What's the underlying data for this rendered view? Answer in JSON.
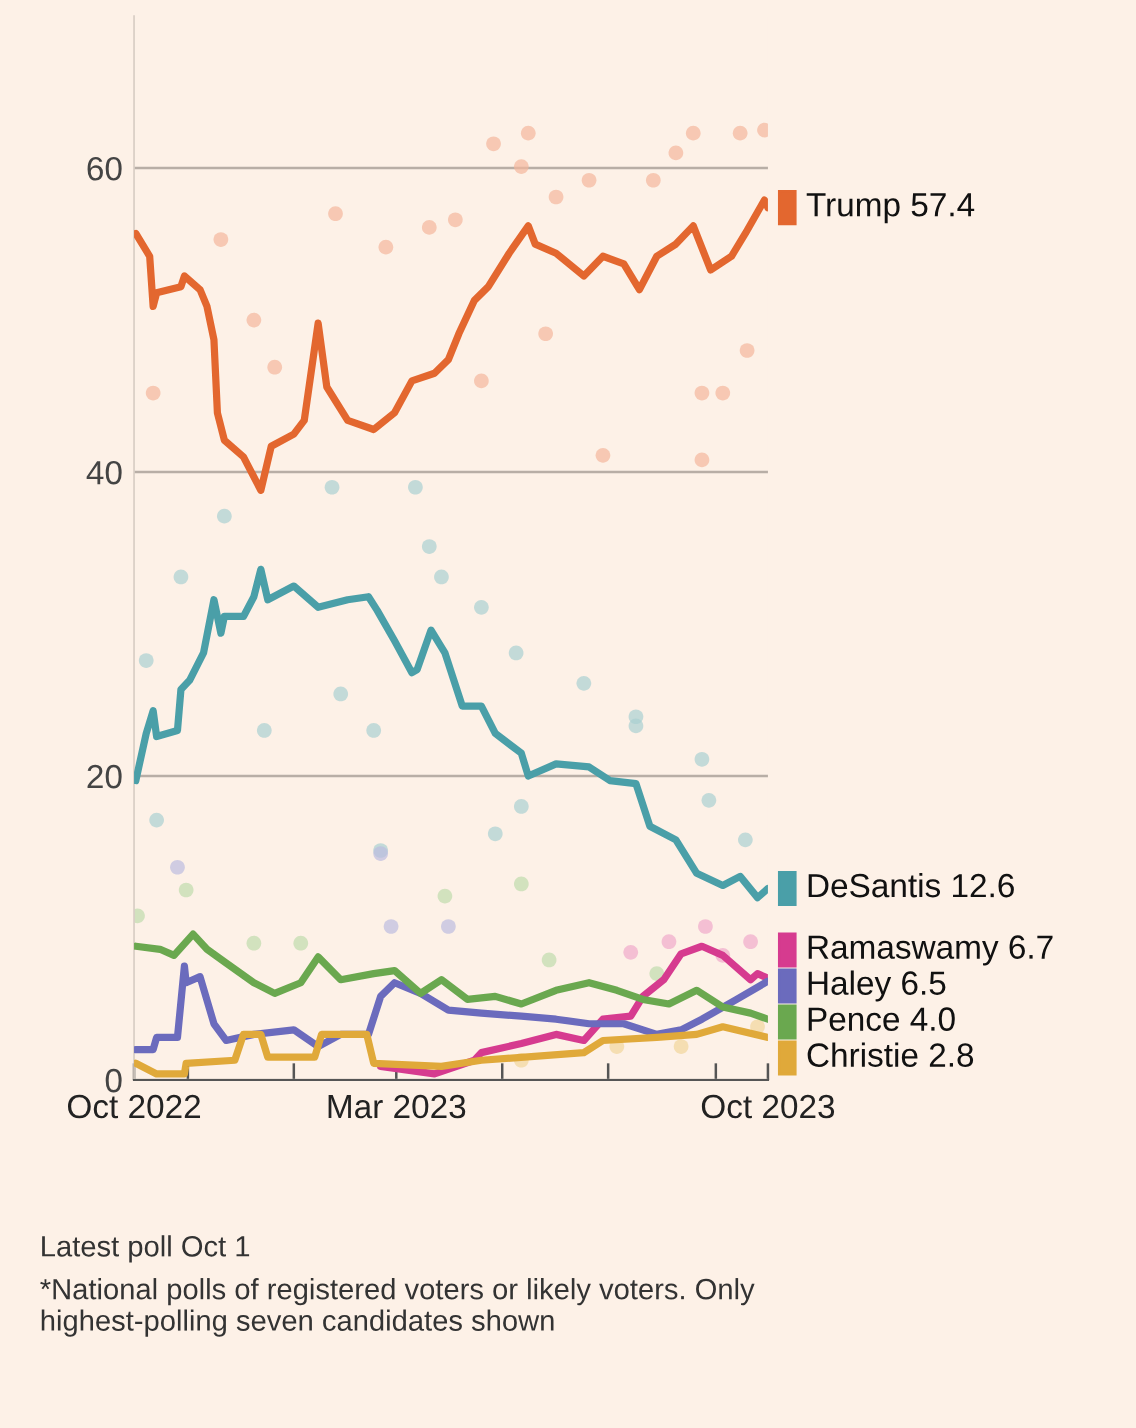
{
  "chart_data": {
    "type": "line",
    "xlim": [
      "2022-10-01",
      "2023-10-01"
    ],
    "xticks": [
      {
        "value": "2022-10-01",
        "label": "Oct 2022"
      },
      {
        "value": "2022-11-01",
        "label": null
      },
      {
        "value": "2023-01-01",
        "label": null
      },
      {
        "value": "2023-03-01",
        "label": "Mar 2023"
      },
      {
        "value": "2023-05-01",
        "label": null
      },
      {
        "value": "2023-07-01",
        "label": null
      },
      {
        "value": "2023-09-01",
        "label": null
      },
      {
        "value": "2023-10-01",
        "label": "Oct 2023"
      }
    ],
    "ylim": [
      0,
      70
    ],
    "yticks": [
      0,
      20,
      40,
      60
    ],
    "grid": "y",
    "annotations": [
      "Latest poll Oct 1",
      "*National polls of registered voters or likely voters. Only highest-polling seven candidates shown"
    ],
    "series": [
      {
        "type": "scatter",
        "color": "#f3b79c",
        "x": [
          "2023-04-26",
          "2023-05-12",
          "2023-05-16",
          "2023-06-20",
          "2023-07-27",
          "2023-08-19",
          "2023-09-29",
          "2023-09-15",
          "2022-12-09",
          "2022-12-21",
          "2023-01-25",
          "2022-10-12",
          "2022-11-20",
          "2023-02-23",
          "2023-03-20",
          "2023-04-19",
          "2023-05-26",
          "2023-06-28",
          "2023-08-24",
          "2023-08-24",
          "2023-09-05",
          "2023-09-19",
          "2023-04-04",
          "2023-06-01",
          "2023-08-09"
        ],
        "values": [
          61.6,
          60.1,
          62.3,
          59.2,
          59.2,
          62.3,
          62.5,
          62.3,
          50.0,
          46.9,
          57.0,
          45.2,
          55.3,
          54.8,
          56.1,
          46.0,
          49.1,
          41.1,
          45.2,
          40.8,
          45.2,
          48.0,
          56.6,
          58.1,
          61.0
        ]
      },
      {
        "type": "scatter",
        "color": "#a9d0d2",
        "x": [
          "2022-11-22",
          "2022-10-28",
          "2022-10-08",
          "2022-10-14",
          "2022-12-15",
          "2023-01-23",
          "2023-03-12",
          "2023-03-27",
          "2023-04-19",
          "2023-05-09",
          "2023-06-17",
          "2023-07-17",
          "2023-07-17",
          "2023-08-24",
          "2023-08-28",
          "2023-04-27",
          "2023-02-20",
          "2023-09-18",
          "2023-05-12",
          "2023-02-16",
          "2023-01-28",
          "2023-03-20"
        ],
        "values": [
          37.1,
          33.1,
          27.6,
          17.1,
          23.0,
          39.0,
          39.0,
          33.1,
          31.1,
          28.1,
          26.1,
          23.9,
          23.3,
          21.1,
          18.4,
          16.2,
          15.1,
          15.8,
          18.0,
          23.0,
          25.4,
          35.1
        ]
      },
      {
        "type": "scatter",
        "color": "#f0a9cb",
        "x": [
          "2023-07-14",
          "2023-08-05",
          "2023-08-26",
          "2023-09-21",
          "2023-09-05"
        ],
        "values": [
          8.4,
          9.1,
          10.1,
          9.1,
          8.2
        ]
      },
      {
        "type": "scatter",
        "color": "#bcbce0",
        "x": [
          "2023-02-26",
          "2023-03-31",
          "2022-10-26",
          "2023-02-20"
        ],
        "values": [
          10.1,
          10.1,
          14.0,
          14.9
        ]
      },
      {
        "type": "scatter",
        "color": "#bfdcad",
        "x": [
          "2022-12-09",
          "2023-01-05",
          "2023-05-12",
          "2022-10-31",
          "2022-10-03",
          "2023-03-29",
          "2023-05-28",
          "2023-07-29"
        ],
        "values": [
          9.0,
          9.0,
          12.9,
          12.5,
          10.8,
          12.1,
          7.9,
          7.0
        ]
      },
      {
        "type": "scatter",
        "color": "#f1d59b",
        "x": [
          "2023-07-06",
          "2023-08-12",
          "2023-09-25",
          "2023-05-12"
        ],
        "values": [
          2.2,
          2.2,
          3.5,
          1.3
        ]
      },
      {
        "name": "Trump",
        "color": "#e3672f",
        "x": [
          "2022-10-02",
          "2022-10-10",
          "2022-10-12",
          "2022-10-14",
          "2022-10-28",
          "2022-10-30",
          "2022-11-08",
          "2022-11-12",
          "2022-11-16",
          "2022-11-18",
          "2022-11-22",
          "2022-12-03",
          "2022-12-13",
          "2022-12-19",
          "2023-01-01",
          "2023-01-07",
          "2023-01-15",
          "2023-01-20",
          "2023-02-01",
          "2023-02-16",
          "2023-02-28",
          "2023-03-10",
          "2023-03-23",
          "2023-03-31",
          "2023-04-06",
          "2023-04-15",
          "2023-04-23",
          "2023-05-05",
          "2023-05-16",
          "2023-05-20",
          "2023-06-01",
          "2023-06-17",
          "2023-06-28",
          "2023-07-10",
          "2023-07-19",
          "2023-07-29",
          "2023-08-09",
          "2023-08-19",
          "2023-08-29",
          "2023-09-10",
          "2023-09-18",
          "2023-09-29",
          "2023-10-01"
        ],
        "values": [
          55.7,
          54.2,
          50.9,
          51.8,
          52.2,
          52.9,
          52.0,
          50.9,
          48.7,
          43.9,
          42.1,
          41.0,
          38.8,
          41.7,
          42.5,
          43.4,
          49.8,
          45.6,
          43.4,
          42.8,
          43.9,
          46.0,
          46.5,
          47.4,
          49.1,
          51.3,
          52.2,
          54.4,
          56.2,
          55.0,
          54.4,
          52.9,
          54.2,
          53.7,
          52.0,
          54.2,
          55.0,
          56.2,
          53.3,
          54.2,
          55.7,
          57.9,
          57.4
        ],
        "value_labels": [
          null,
          null,
          null,
          null,
          null,
          null,
          null,
          null,
          null,
          null,
          null,
          null,
          null,
          null,
          null,
          null,
          null,
          null,
          null,
          null,
          null,
          null,
          null,
          null,
          null,
          null,
          null,
          null,
          null,
          null,
          null,
          null,
          null,
          null,
          null,
          null,
          null,
          null,
          null,
          null,
          null,
          null,
          "57.4"
        ]
      },
      {
        "name": "DeSantis",
        "color": "#4a9fa8",
        "x": [
          "2022-10-02",
          "2022-10-08",
          "2022-10-12",
          "2022-10-14",
          "2022-10-26",
          "2022-10-28",
          "2022-11-02",
          "2022-11-10",
          "2022-11-16",
          "2022-11-20",
          "2022-11-22",
          "2022-12-03",
          "2022-12-09",
          "2022-12-13",
          "2022-12-17",
          "2023-01-01",
          "2023-01-15",
          "2023-02-01",
          "2023-02-13",
          "2023-02-18",
          "2023-02-28",
          "2023-03-10",
          "2023-03-13",
          "2023-03-21",
          "2023-03-29",
          "2023-04-08",
          "2023-04-19",
          "2023-04-27",
          "2023-05-12",
          "2023-05-16",
          "2023-06-01",
          "2023-06-20",
          "2023-07-02",
          "2023-07-17",
          "2023-07-25",
          "2023-08-09",
          "2023-08-21",
          "2023-09-05",
          "2023-09-15",
          "2023-09-25",
          "2023-10-01"
        ],
        "values": [
          19.7,
          22.8,
          24.3,
          22.6,
          23.0,
          25.7,
          26.3,
          28.1,
          31.6,
          29.4,
          30.5,
          30.5,
          31.8,
          33.6,
          31.6,
          32.5,
          31.1,
          31.6,
          31.8,
          30.9,
          28.9,
          26.8,
          27.0,
          29.6,
          28.1,
          24.6,
          24.6,
          22.8,
          21.5,
          20.0,
          20.8,
          20.6,
          19.7,
          19.5,
          16.7,
          15.8,
          13.6,
          12.8,
          13.4,
          12.0,
          12.6
        ],
        "value_labels": [
          null,
          null,
          null,
          null,
          null,
          null,
          null,
          null,
          null,
          null,
          null,
          null,
          null,
          null,
          null,
          null,
          null,
          null,
          null,
          null,
          null,
          null,
          null,
          null,
          null,
          null,
          null,
          null,
          null,
          null,
          null,
          null,
          null,
          null,
          null,
          null,
          null,
          null,
          null,
          null,
          "12.6"
        ]
      },
      {
        "name": "Ramaswamy",
        "color": "#d63b8f",
        "x": [
          "2023-02-20",
          "2023-03-23",
          "2023-04-15",
          "2023-04-19",
          "2023-05-12",
          "2023-06-01",
          "2023-06-17",
          "2023-06-28",
          "2023-07-14",
          "2023-07-21",
          "2023-08-02",
          "2023-08-12",
          "2023-08-24",
          "2023-09-05",
          "2023-09-21",
          "2023-09-25",
          "2023-10-01"
        ],
        "values": [
          0.9,
          0.4,
          1.3,
          1.8,
          2.4,
          3.0,
          2.6,
          4.0,
          4.2,
          5.5,
          6.6,
          8.3,
          8.8,
          8.2,
          6.6,
          7.0,
          6.7
        ],
        "value_labels": [
          null,
          null,
          null,
          null,
          null,
          null,
          null,
          null,
          null,
          null,
          null,
          null,
          null,
          null,
          null,
          null,
          "6.7"
        ]
      },
      {
        "name": "Haley",
        "color": "#6b6bbd",
        "x": [
          "2022-10-02",
          "2022-10-12",
          "2022-10-14",
          "2022-10-26",
          "2022-10-30",
          "2022-10-31",
          "2022-11-08",
          "2022-11-16",
          "2022-11-23",
          "2022-12-09",
          "2023-01-01",
          "2023-01-15",
          "2023-01-28",
          "2023-02-13",
          "2023-02-20",
          "2023-02-28",
          "2023-03-15",
          "2023-03-31",
          "2023-04-19",
          "2023-05-12",
          "2023-06-01",
          "2023-06-20",
          "2023-07-10",
          "2023-07-29",
          "2023-08-12",
          "2023-08-24",
          "2023-09-13",
          "2023-10-01"
        ],
        "values": [
          2.0,
          2.0,
          2.8,
          2.8,
          7.5,
          6.4,
          6.8,
          3.7,
          2.6,
          3.0,
          3.3,
          2.2,
          3.0,
          3.0,
          5.5,
          6.4,
          5.7,
          4.6,
          4.4,
          4.2,
          4.0,
          3.7,
          3.7,
          3.0,
          3.3,
          4.0,
          5.3,
          6.5
        ],
        "value_labels": [
          null,
          null,
          null,
          null,
          null,
          null,
          null,
          null,
          null,
          null,
          null,
          null,
          null,
          null,
          null,
          null,
          null,
          null,
          null,
          null,
          null,
          null,
          null,
          null,
          null,
          null,
          null,
          "6.5"
        ]
      },
      {
        "name": "Pence",
        "color": "#6aa84f",
        "x": [
          "2022-10-02",
          "2022-10-16",
          "2022-10-24",
          "2022-11-04",
          "2022-11-12",
          "2022-11-23",
          "2022-12-09",
          "2022-12-21",
          "2023-01-05",
          "2023-01-15",
          "2023-01-28",
          "2023-02-16",
          "2023-02-28",
          "2023-03-15",
          "2023-03-27",
          "2023-04-11",
          "2023-04-27",
          "2023-05-12",
          "2023-06-01",
          "2023-06-20",
          "2023-07-06",
          "2023-07-21",
          "2023-08-05",
          "2023-08-21",
          "2023-09-05",
          "2023-09-21",
          "2023-10-01"
        ],
        "values": [
          8.8,
          8.6,
          8.2,
          9.6,
          8.6,
          7.7,
          6.4,
          5.7,
          6.4,
          8.1,
          6.6,
          7.0,
          7.2,
          5.7,
          6.6,
          5.3,
          5.5,
          5.0,
          5.9,
          6.4,
          5.9,
          5.3,
          5.0,
          5.9,
          4.8,
          4.4,
          4.0
        ],
        "value_labels": [
          null,
          null,
          null,
          null,
          null,
          null,
          null,
          null,
          null,
          null,
          null,
          null,
          null,
          null,
          null,
          null,
          null,
          null,
          null,
          null,
          null,
          null,
          null,
          null,
          null,
          null,
          "4.0"
        ]
      },
      {
        "name": "Christie",
        "color": "#e0a93a",
        "x": [
          "2022-10-02",
          "2022-10-14",
          "2022-10-30",
          "2022-10-31",
          "2022-11-28",
          "2022-12-03",
          "2022-12-13",
          "2022-12-17",
          "2023-01-13",
          "2023-01-17",
          "2023-02-12",
          "2023-02-16",
          "2023-03-27",
          "2023-04-19",
          "2023-06-17",
          "2023-06-28",
          "2023-07-29",
          "2023-08-21",
          "2023-09-05",
          "2023-10-01"
        ],
        "values": [
          1.1,
          0.4,
          0.4,
          1.1,
          1.3,
          3.0,
          3.0,
          1.5,
          1.5,
          3.0,
          3.0,
          1.1,
          0.9,
          1.3,
          1.8,
          2.6,
          2.8,
          3.0,
          3.5,
          2.8
        ],
        "value_labels": [
          null,
          null,
          null,
          null,
          null,
          null,
          null,
          null,
          null,
          null,
          null,
          null,
          null,
          null,
          null,
          null,
          null,
          null,
          null,
          "2.8"
        ]
      }
    ]
  }
}
